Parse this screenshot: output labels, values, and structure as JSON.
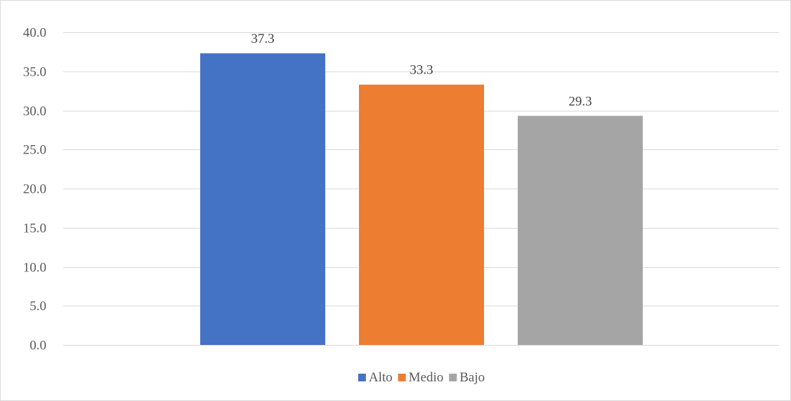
{
  "chart_data": {
    "type": "bar",
    "categories": [
      ""
    ],
    "series": [
      {
        "name": "Alto",
        "values": [
          37.3
        ],
        "color": "#4472C4"
      },
      {
        "name": "Medio",
        "values": [
          33.3
        ],
        "color": "#ED7D31"
      },
      {
        "name": "Bajo",
        "values": [
          29.3
        ],
        "color": "#A5A5A5"
      }
    ],
    "title": "",
    "xlabel": "",
    "ylabel": "",
    "ylim": [
      0,
      40
    ],
    "ytick_step": 5,
    "ytick_decimals": 1,
    "value_decimals": 1,
    "grid": true,
    "legend_position": "bottom",
    "gridline_color": "#d9d9d9"
  }
}
